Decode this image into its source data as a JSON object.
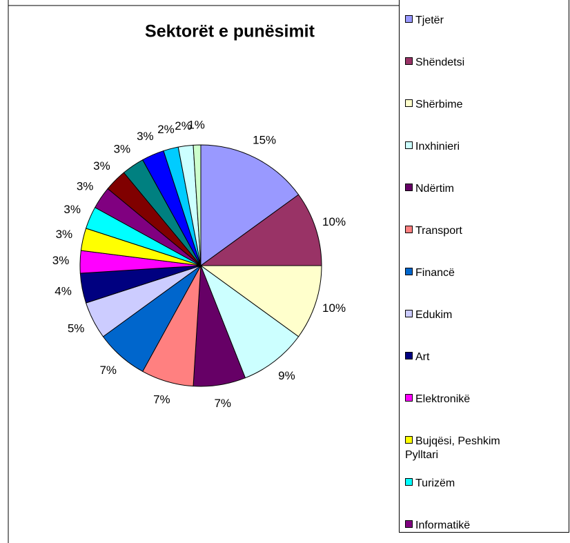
{
  "chart_data": {
    "type": "pie",
    "title": "Sektorët e punësimit",
    "categories": [
      "Tjetër",
      "Shëndetsi",
      "Shërbime",
      "Inxhinieri",
      "Ndërtim",
      "Transport",
      "Financë",
      "Edukim",
      "Art",
      "Elektronikë",
      "Bujqësi, Peshkim Pylltari",
      "Turizëm",
      "Informatikë",
      null,
      null,
      null,
      null,
      null,
      null
    ],
    "values": [
      15,
      10,
      10,
      9,
      7,
      7,
      7,
      5,
      4,
      3,
      3,
      3,
      3,
      3,
      3,
      3,
      2,
      2,
      1
    ],
    "value_labels": [
      "15%",
      "10%",
      "10%",
      "9%",
      "7%",
      "7%",
      "7%",
      "5%",
      "4%",
      "3%",
      "3%",
      "3%",
      "3%",
      "3%",
      "3%",
      "3%",
      "2%",
      "2%",
      "1%"
    ],
    "colors": [
      "#9999ff",
      "#993366",
      "#ffffcc",
      "#ccffff",
      "#660066",
      "#ff8080",
      "#0066cc",
      "#ccccff",
      "#000080",
      "#ff00ff",
      "#ffff00",
      "#00ffff",
      "#800080",
      "#800000",
      "#008080",
      "#0000ff",
      "#00ccff",
      "#ccffff",
      "#ccffcc"
    ]
  }
}
